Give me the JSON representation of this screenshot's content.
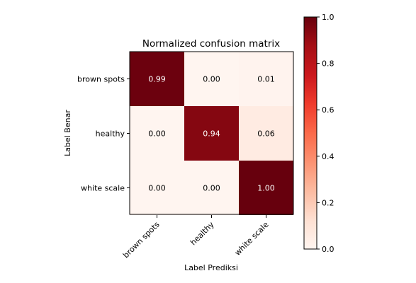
{
  "chart_data": {
    "type": "heatmap",
    "title": "Normalized confusion matrix",
    "xlabel": "Label Prediksi",
    "ylabel": "Label Benar",
    "row_labels": [
      "brown spots",
      "healthy",
      "white scale"
    ],
    "col_labels": [
      "brown spots",
      "healthy",
      "white scale"
    ],
    "values": [
      [
        0.99,
        0.0,
        0.01
      ],
      [
        0.0,
        0.94,
        0.06
      ],
      [
        0.0,
        0.0,
        1.0
      ]
    ],
    "value_labels": [
      [
        "0.99",
        "0.00",
        "0.01"
      ],
      [
        "0.00",
        "0.94",
        "0.06"
      ],
      [
        "0.00",
        "0.00",
        "1.00"
      ]
    ],
    "colormap": "Reds",
    "colorbar": {
      "vmin": 0.0,
      "vmax": 1.0,
      "ticks": [
        0.0,
        0.2,
        0.4,
        0.6,
        0.8,
        1.0
      ],
      "tick_labels": [
        "0.0",
        "0.2",
        "0.4",
        "0.6",
        "0.8",
        "1.0"
      ]
    }
  }
}
